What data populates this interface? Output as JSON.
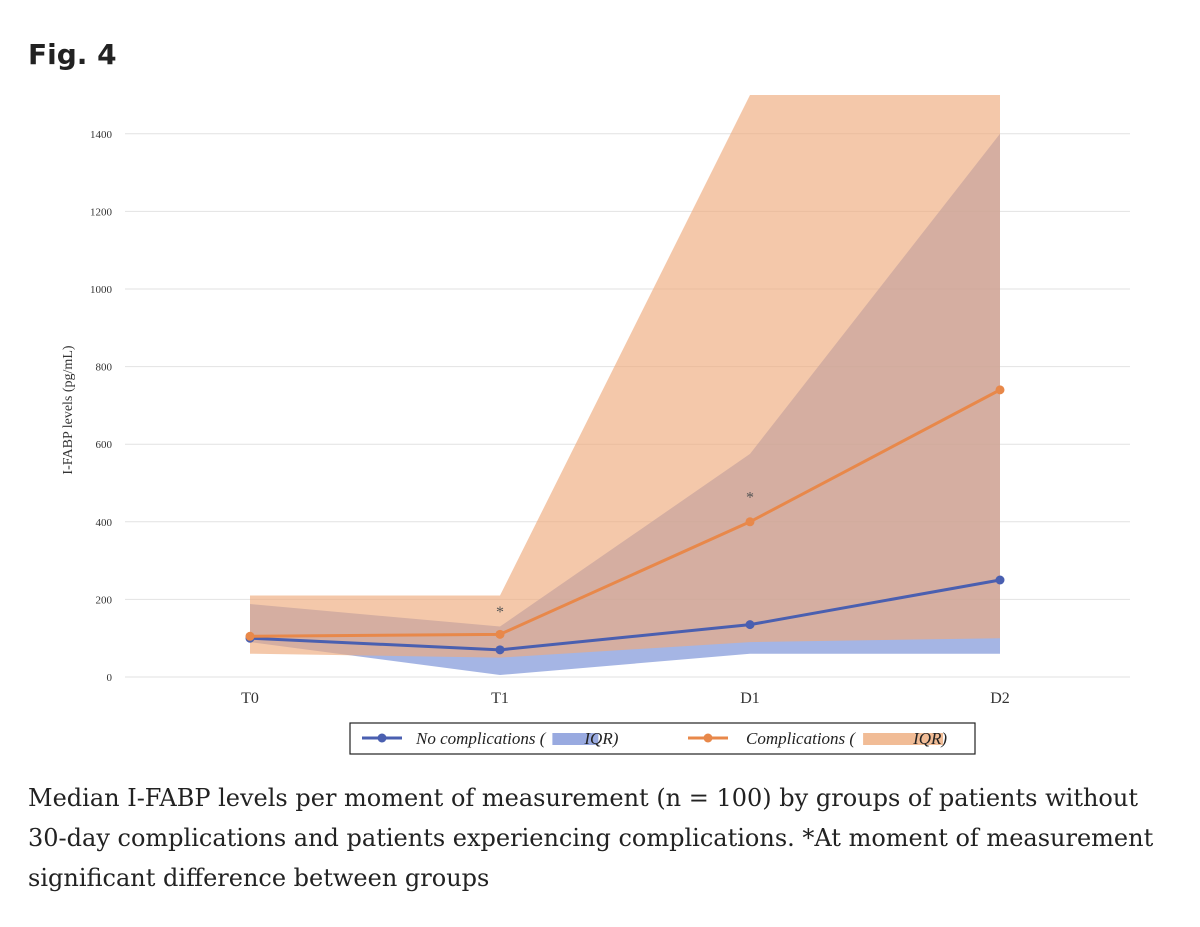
{
  "figure_label": "Fig. 4",
  "caption": "Median I-FABP levels per moment of measurement (n = 100) by groups of patients without 30-day complications and patients experiencing complications. *At moment of measurement significant difference between groups",
  "chart_data": {
    "type": "line",
    "y_label": "I-FABP levels (pg/mL)",
    "categories": [
      "T0",
      "T1",
      "D1",
      "D2"
    ],
    "ylim": [
      0,
      1500
    ],
    "yticks": [
      0,
      200,
      400,
      600,
      800,
      1000,
      1200,
      1400
    ],
    "grid": true,
    "series": [
      {
        "name": "No complications (",
        "iqr_label": "IQR)",
        "color": "#4a5fb0",
        "band_color": "#7f95d8",
        "values": [
          100,
          70,
          135,
          250
        ],
        "lower": [
          90,
          5,
          60,
          60
        ],
        "upper": [
          188,
          130,
          575,
          1400
        ]
      },
      {
        "name": "Complications (",
        "iqr_label": "IQR)",
        "color": "#e8884a",
        "band_color": "#eeab7c",
        "values": [
          105,
          110,
          400,
          740
        ],
        "lower": [
          60,
          50,
          90,
          100
        ],
        "upper": [
          210,
          210,
          1500,
          1500
        ]
      }
    ],
    "annotations": [
      {
        "text": "*",
        "category": 1,
        "value": 175
      },
      {
        "text": "*",
        "category": 2,
        "value": 470
      }
    ]
  }
}
